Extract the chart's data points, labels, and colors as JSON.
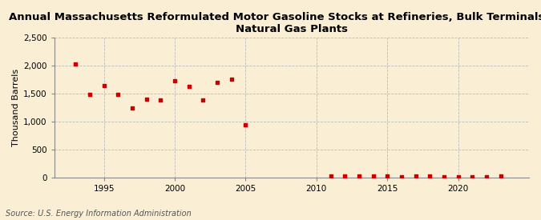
{
  "title": "Annual Massachusetts Reformulated Motor Gasoline Stocks at Refineries, Bulk Terminals, and\nNatural Gas Plants",
  "ylabel": "Thousand Barrels",
  "source": "Source: U.S. Energy Information Administration",
  "background_color": "#faefd4",
  "marker_color": "#cc0000",
  "years": [
    1993,
    1994,
    1995,
    1996,
    1997,
    1998,
    1999,
    2000,
    2001,
    2002,
    2003,
    2004,
    2005,
    2011,
    2012,
    2013,
    2014,
    2015,
    2016,
    2017,
    2018,
    2019,
    2020,
    2021,
    2022,
    2023
  ],
  "values": [
    2030,
    1480,
    1640,
    1480,
    1240,
    1400,
    1380,
    1720,
    1630,
    1380,
    1700,
    1750,
    940,
    20,
    30,
    20,
    25,
    20,
    15,
    20,
    20,
    10,
    15,
    10,
    15,
    20
  ],
  "xlim": [
    1991.5,
    2025
  ],
  "ylim": [
    0,
    2500
  ],
  "yticks": [
    0,
    500,
    1000,
    1500,
    2000,
    2500
  ],
  "xticks": [
    1995,
    2000,
    2005,
    2010,
    2015,
    2020
  ],
  "title_fontsize": 9.5,
  "axis_fontsize": 8,
  "tick_fontsize": 7.5,
  "source_fontsize": 7
}
